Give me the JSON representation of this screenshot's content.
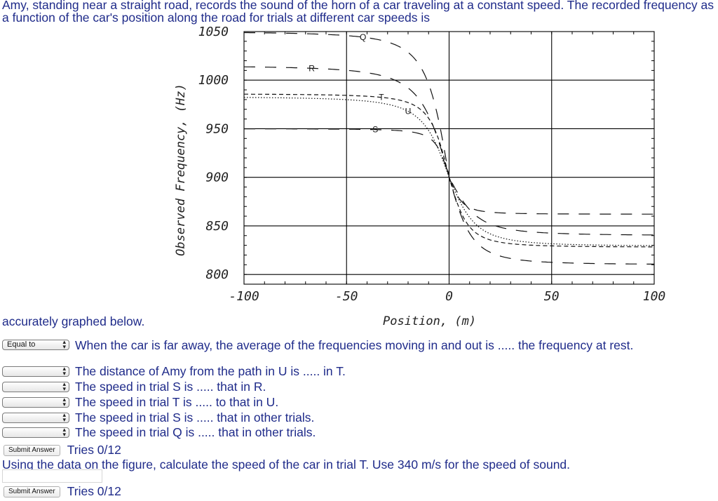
{
  "intro_text": "Amy, standing near a straight road, records the sound of the horn of a car traveling at a constant speed. The recorded frequency as a function of the car's position along the road for trials at different car speeds is",
  "accurately_text": "accurately graphed below.",
  "chart_data": {
    "type": "line",
    "title": "",
    "xlabel": "Position,  (m)",
    "ylabel": "Observed Frequency,  (Hz)",
    "xlim": [
      -100,
      100
    ],
    "ylim": [
      790,
      1050
    ],
    "x_ticks": [
      "-100",
      "-50",
      "0",
      "50",
      "100"
    ],
    "y_ticks": [
      "800",
      "850",
      "900",
      "950",
      "1000",
      "1050"
    ],
    "grid": true,
    "series": [
      {
        "name": "Q",
        "f_approach": 1050,
        "f_recede": 810,
        "halfwidth_m": 12,
        "style": "long-dash"
      },
      {
        "name": "R",
        "f_approach": 1015,
        "f_recede": 840,
        "halfwidth_m": 15,
        "style": "long-dash"
      },
      {
        "name": "T",
        "f_approach": 986,
        "f_recede": 828,
        "halfwidth_m": 10,
        "style": "short-dash"
      },
      {
        "name": "U",
        "f_approach": 983,
        "f_recede": 829,
        "halfwidth_m": 14,
        "style": "dotted"
      },
      {
        "name": "S",
        "f_approach": 950,
        "f_recede": 862,
        "halfwidth_m": 7,
        "style": "long-dash"
      }
    ]
  },
  "questions": [
    {
      "selected": "Equal to",
      "text": "When the car is far away, the average of the frequencies moving in and out is ..... the frequency at rest."
    },
    {
      "selected": "",
      "text": "The distance of Amy from the path in U is ..... in T."
    },
    {
      "selected": "",
      "text": "The speed in trial S is ..... that in R."
    },
    {
      "selected": "",
      "text": "The speed in trial T is ..... to that in U."
    },
    {
      "selected": "",
      "text": "The speed in trial S is ..... that in other trials."
    },
    {
      "selected": "",
      "text": "The speed in trial Q is ..... that in other trials."
    }
  ],
  "submit_label": "Submit Answer",
  "tries_1": "Tries 0/12",
  "question2_text": "Using the data on the figure, calculate the speed of the car in trial T. Use 340 m/s for the speed of sound.",
  "answer_value": "",
  "tries_2": "Tries 0/12"
}
